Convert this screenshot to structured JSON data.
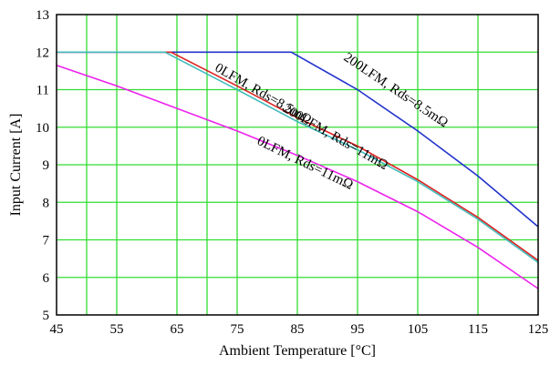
{
  "chart_data": {
    "type": "line",
    "title": "",
    "xlabel": "Ambient Temperature [°C]",
    "ylabel": "Input Current [A]",
    "xlim": [
      45,
      125
    ],
    "ylim": [
      5,
      13
    ],
    "xticks": [
      45,
      55,
      65,
      75,
      85,
      95,
      105,
      115,
      125
    ],
    "yticks": [
      5,
      6,
      7,
      8,
      9,
      10,
      11,
      12,
      13
    ],
    "grid_x": [
      50,
      55,
      65,
      70,
      75,
      85,
      95,
      105,
      115
    ],
    "grid_y": [
      6,
      7,
      8,
      9,
      10,
      11,
      12
    ],
    "grid": true,
    "grid_color": "#33dd33",
    "series": [
      {
        "name": "200LFM, Rds=8.5mΩ",
        "color": "#2233cc",
        "points": [
          [
            45,
            12
          ],
          [
            84,
            12
          ],
          [
            95,
            11
          ],
          [
            105,
            9.9
          ],
          [
            115,
            8.7
          ],
          [
            125,
            7.35
          ]
        ]
      },
      {
        "name": "0LFM, Rds=8.5mΩ",
        "color": "#dd2222",
        "points": [
          [
            45,
            12
          ],
          [
            64,
            12
          ],
          [
            75,
            11.1
          ],
          [
            85,
            10.25
          ],
          [
            95,
            9.5
          ],
          [
            105,
            8.6
          ],
          [
            115,
            7.6
          ],
          [
            125,
            6.45
          ]
        ]
      },
      {
        "name": "200LFM, Rds=11mΩ",
        "color": "#44bbbb",
        "points": [
          [
            45,
            12
          ],
          [
            63,
            12
          ],
          [
            75,
            11.0
          ],
          [
            85,
            10.15
          ],
          [
            95,
            9.4
          ],
          [
            105,
            8.55
          ],
          [
            115,
            7.55
          ],
          [
            125,
            6.4
          ]
        ]
      },
      {
        "name": "0LFM, Rds=11mΩ",
        "color": "#ee22ee",
        "points": [
          [
            45,
            11.65
          ],
          [
            55,
            11.1
          ],
          [
            65,
            10.5
          ],
          [
            75,
            9.9
          ],
          [
            85,
            9.25
          ],
          [
            95,
            8.55
          ],
          [
            105,
            7.75
          ],
          [
            115,
            6.8
          ],
          [
            125,
            5.7
          ]
        ]
      }
    ],
    "annotations": [
      {
        "text": "200LFM, Rds=8.5mΩ",
        "x": 101,
        "y": 10.9,
        "angle": 34
      },
      {
        "text": "0LFM, Rds=8.5mΩ",
        "x": 79,
        "y": 10.8,
        "angle": 30
      },
      {
        "text": "200LFM, Rds=11mΩ",
        "x": 91,
        "y": 9.65,
        "angle": 30
      },
      {
        "text": "0LFM, Rds=11mΩ",
        "x": 86,
        "y": 8.95,
        "angle": 26
      }
    ]
  }
}
